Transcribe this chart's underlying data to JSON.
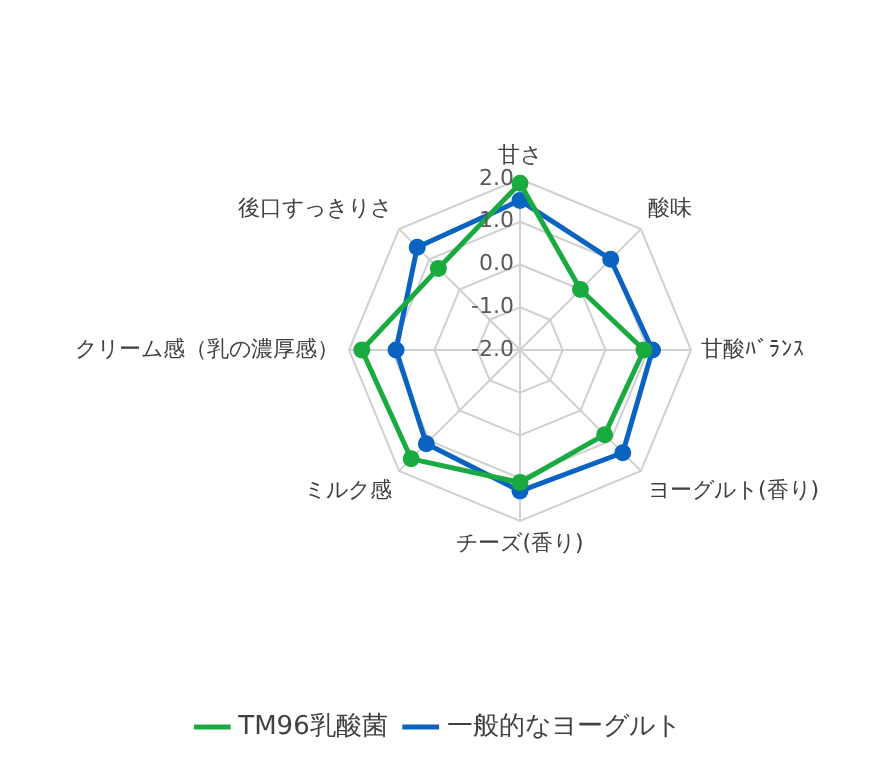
{
  "chart_data": {
    "type": "radar",
    "categories": [
      "甘さ",
      "酸味",
      "甘酸ﾊﾞﾗﾝｽ",
      "ヨーグルト(香り)",
      "チーズ(香り)",
      "ミルク感",
      "クリーム感（乳の濃厚感）",
      "後口すっきりさ"
    ],
    "series": [
      {
        "name": "TM96乳酸菌",
        "color": "#1aab40",
        "values": [
          1.9,
          0.0,
          0.9,
          0.8,
          1.1,
          1.6,
          1.7,
          0.7
        ]
      },
      {
        "name": "一般的なヨーグルト",
        "color": "#0b63c1",
        "values": [
          1.5,
          1.0,
          1.1,
          1.4,
          1.3,
          1.1,
          0.9,
          1.4
        ]
      }
    ],
    "ylim": [
      -2,
      2
    ],
    "yticks": [
      {
        "value": -2,
        "label": "-2.0"
      },
      {
        "value": -1,
        "label": "-1.0"
      },
      {
        "value": 0,
        "label": "0.0"
      },
      {
        "value": 1,
        "label": "1.0"
      },
      {
        "value": 2,
        "label": "2.0"
      }
    ],
    "grid": true,
    "legend": "bottom",
    "marker": "circle",
    "line_style": "solid"
  }
}
